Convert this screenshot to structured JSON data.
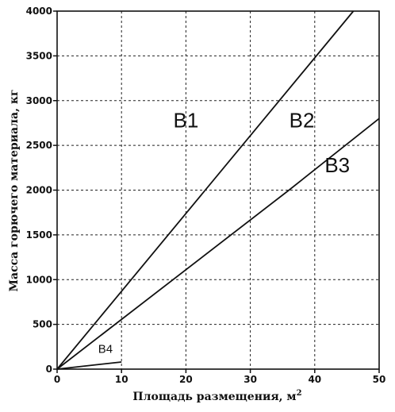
{
  "chart_data": {
    "type": "line",
    "xlabel": "Площадь размещения, м",
    "xlabel_sup": "2",
    "ylabel": "Масса горючего материала, кг",
    "xlim": [
      0,
      50
    ],
    "ylim": [
      0,
      4000
    ],
    "x_ticks": [
      0,
      10,
      20,
      30,
      40,
      50
    ],
    "y_ticks": [
      0,
      500,
      1000,
      1500,
      2000,
      2500,
      3000,
      3500,
      4000
    ],
    "grid": true,
    "series": [
      {
        "x": [
          0,
          46
        ],
        "y": [
          0,
          4000
        ]
      },
      {
        "x": [
          0,
          36,
          50
        ],
        "y": [
          0,
          2000,
          2800
        ]
      },
      {
        "x": [
          0,
          10
        ],
        "y": [
          0,
          80
        ]
      }
    ],
    "annotations": [
      {
        "text": "B1",
        "x": 20,
        "y": 2700
      },
      {
        "text": "B2",
        "x": 38,
        "y": 2700
      },
      {
        "text": "B3",
        "x": 43.5,
        "y": 2200
      },
      {
        "text": "B4",
        "x": 7.5,
        "y": 180
      }
    ]
  }
}
